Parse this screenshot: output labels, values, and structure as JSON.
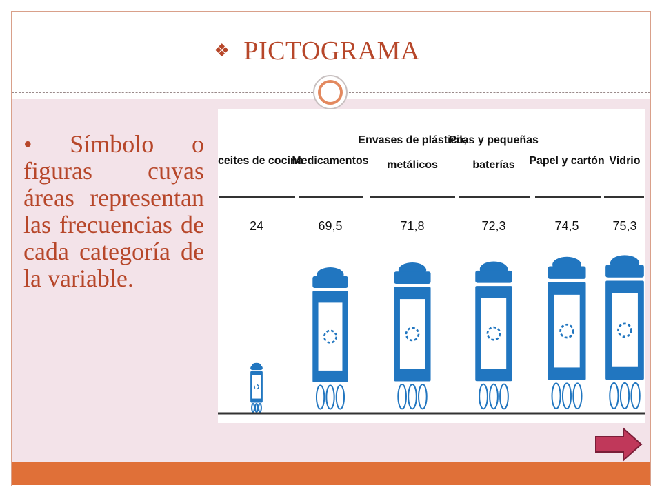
{
  "slide": {
    "title": "PICTOGRAMA",
    "title_bullet_icon": "diamond-bullet-icon",
    "body_text": "• Símbolo o figuras cuyas áreas representan las frecuencias de cada categoría de la variable.",
    "next_icon": "next-arrow-icon",
    "colors": {
      "accent": "#b7472a",
      "footer": "#e07038",
      "band": "#f3e3e9",
      "pictogram": "#2176c0",
      "arrow": "#c0385a"
    }
  },
  "chart_data": {
    "type": "bar",
    "categories": [
      "Aceites de cocina",
      "Medicamentos",
      "Envases de plástico, metálicos",
      "Pilas y pequeñas baterías",
      "Papel y cartón",
      "Vidrio"
    ],
    "category_lines": [
      [
        "Aceites de cocina"
      ],
      [
        "Medicamentos"
      ],
      [
        "Envases de plástico,",
        "metálicos"
      ],
      [
        "Pilas y pequeñas",
        "baterías"
      ],
      [
        "Papel y cartón"
      ],
      [
        "Vidrio"
      ]
    ],
    "values": [
      24,
      69.5,
      71.8,
      72.3,
      74.5,
      75.3
    ],
    "value_labels": [
      "24",
      "69,5",
      "71,8",
      "72,3",
      "74,5",
      "75,3"
    ],
    "marker": "recycling-bin-icon"
  }
}
